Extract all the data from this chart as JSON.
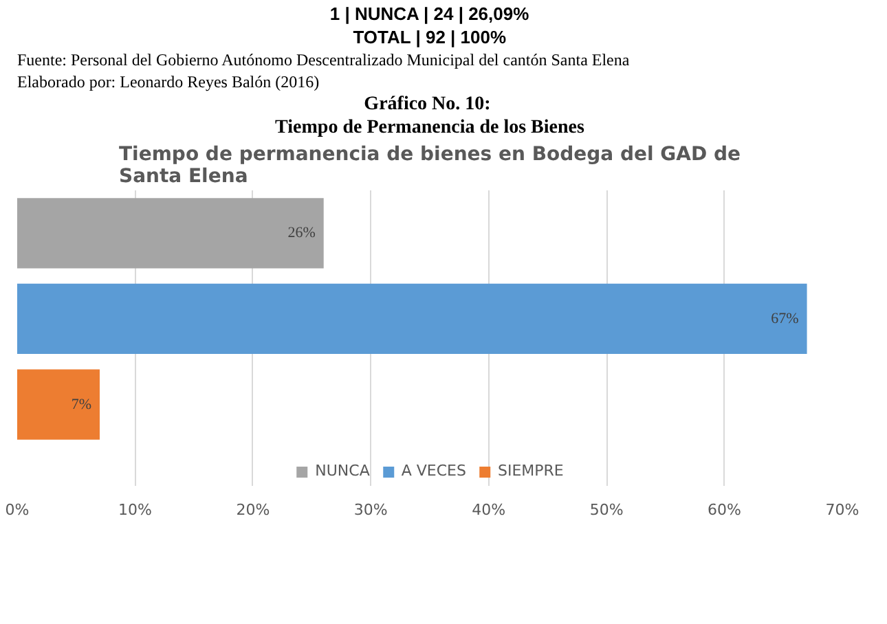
{
  "chart_data": {
    "type": "bar",
    "orientation": "horizontal",
    "title": "Tiempo de permanencia de bienes en Bodega del GAD de Santa Elena",
    "annotations": [
      "1 | NUNCA | 24 | 26,09%",
      "TOTAL | 92 | 100%",
      "Fuente: Personal del Gobierno Autónomo Descentralizado Municipal del cantón Santa Elena",
      "Elaborado por: Leonardo Reyes Balón (2016)",
      "Gráfico No.  10:",
      "Tiempo de Permanencia de los Bienes"
    ],
    "categories": [
      null,
      null,
      null
    ],
    "series": [
      {
        "name": "NUNCA",
        "color": "#a5a5a5",
        "values": [
          26,
          null,
          null
        ],
        "value_labels": [
          "26%",
          null,
          null
        ]
      },
      {
        "name": "A VECES",
        "color": "#5b9bd5",
        "values": [
          null,
          67,
          null
        ],
        "value_labels": [
          null,
          "67%",
          null
        ]
      },
      {
        "name": "SIEMPRE",
        "color": "#ed7d31",
        "values": [
          null,
          null,
          7
        ],
        "value_labels": [
          null,
          null,
          "7%"
        ]
      }
    ],
    "xlim": [
      0,
      70
    ],
    "xticks": [
      {
        "value": 0,
        "label": "0%"
      },
      {
        "value": 10,
        "label": "10%"
      },
      {
        "value": 20,
        "label": "20%"
      },
      {
        "value": 30,
        "label": "30%"
      },
      {
        "value": 40,
        "label": "40%"
      },
      {
        "value": 50,
        "label": "50%"
      },
      {
        "value": 60,
        "label": "60%"
      },
      {
        "value": 70,
        "label": "70%"
      }
    ],
    "grid": "x",
    "legend": "bottom"
  }
}
